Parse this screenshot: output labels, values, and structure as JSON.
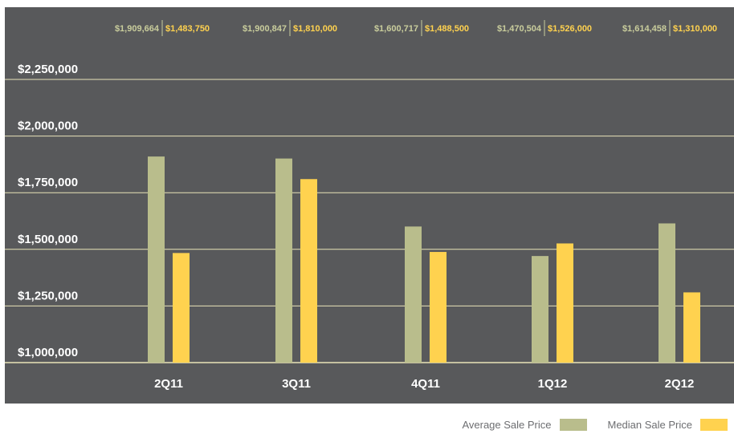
{
  "chart_data": {
    "type": "bar",
    "categories": [
      "2Q11",
      "3Q11",
      "4Q11",
      "1Q12",
      "2Q12"
    ],
    "series": [
      {
        "name": "Average Sale Price",
        "values": [
          1909664,
          1900847,
          1600717,
          1470504,
          1614458
        ],
        "labels": [
          "$1,909,664",
          "$1,900,847",
          "$1,600,717",
          "$1,470,504",
          "$1,614,458"
        ],
        "color": "#b9bd8c"
      },
      {
        "name": "Median Sale Price",
        "values": [
          1483750,
          1810000,
          1488500,
          1526000,
          1310000
        ],
        "labels": [
          "$1,483,750",
          "$1,810,000",
          "$1,488,500",
          "$1,526,000",
          "$1,310,000"
        ],
        "color": "#ffd24f"
      }
    ],
    "yticks": [
      1000000,
      1250000,
      1500000,
      1750000,
      2000000,
      2250000
    ],
    "ytick_labels": [
      "$1,000,000",
      "$1,250,000",
      "$1,500,000",
      "$1,750,000",
      "$2,000,000",
      "$2,250,000"
    ],
    "ylim": [
      1000000,
      2250000
    ],
    "grid": true,
    "legend_position": "bottom-right",
    "background": "#58595b"
  }
}
